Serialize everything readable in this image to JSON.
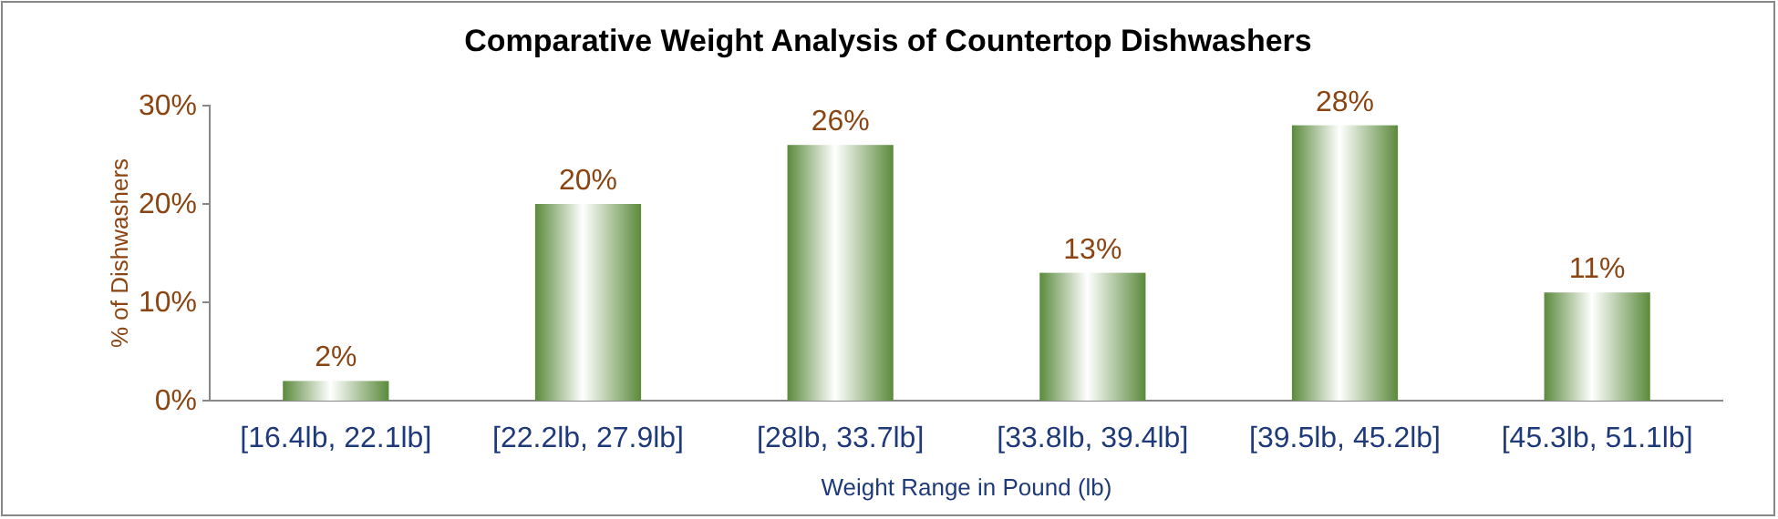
{
  "chart_data": {
    "type": "bar",
    "title": "Comparative Weight Analysis of Countertop Dishwashers",
    "xlabel": "Weight Range in Pound  (lb)",
    "ylabel": "% of Dishwashers",
    "categories": [
      "[16.4lb, 22.1lb]",
      "[22.2lb, 27.9lb]",
      "[28lb, 33.7lb]",
      "[33.8lb, 39.4lb]",
      "[39.5lb, 45.2lb]",
      "[45.3lb, 51.1lb]"
    ],
    "values": [
      2,
      20,
      26,
      13,
      28,
      11
    ],
    "color": "#5b8a3c",
    "ylim": [
      0,
      30
    ],
    "yticks": [
      {
        "value": 0,
        "label": "0%"
      },
      {
        "value": 10,
        "label": "10%"
      },
      {
        "value": 20,
        "label": "20%"
      },
      {
        "value": 30,
        "label": "30%"
      }
    ],
    "value_labels": [
      "2%",
      "20%",
      "26%",
      "13%",
      "28%",
      "11%"
    ],
    "grid": false
  }
}
